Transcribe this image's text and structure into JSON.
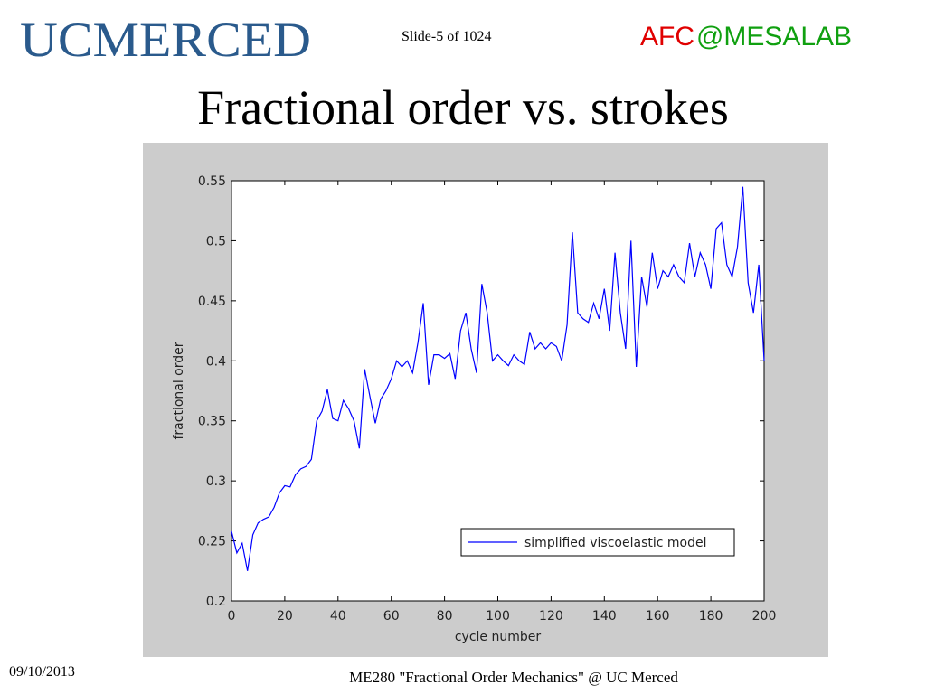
{
  "header": {
    "logo": "UCMERCED",
    "lab_left": "AFC",
    "lab_right": "@MESALAB",
    "slide_number": "Slide-5 of 1024",
    "title": "Fractional order vs. strokes"
  },
  "footer": {
    "date": "09/10/2013",
    "course": "ME280 \"Fractional Order Mechanics\" @ UC Merced"
  },
  "chart_data": {
    "type": "line",
    "xlabel": "cycle number",
    "ylabel": "fractional order",
    "x": [
      0,
      2,
      4,
      6,
      8,
      10,
      12,
      14,
      16,
      18,
      20,
      22,
      24,
      26,
      28,
      30,
      32,
      34,
      36,
      38,
      40,
      42,
      44,
      46,
      48,
      50,
      52,
      54,
      56,
      58,
      60,
      62,
      64,
      66,
      68,
      70,
      72,
      74,
      76,
      78,
      80,
      82,
      84,
      86,
      88,
      90,
      92,
      94,
      96,
      98,
      100,
      102,
      104,
      106,
      108,
      110,
      112,
      114,
      116,
      118,
      120,
      122,
      124,
      126,
      128,
      130,
      132,
      134,
      136,
      138,
      140,
      142,
      144,
      146,
      148,
      150,
      152,
      154,
      156,
      158,
      160,
      162,
      164,
      166,
      168,
      170,
      172,
      174,
      176,
      178,
      180,
      182,
      184,
      186,
      188,
      190,
      192,
      194,
      196,
      198,
      200
    ],
    "series": [
      {
        "name": "simplified viscoelastic model",
        "color": "#0000ff",
        "values": [
          0.258,
          0.24,
          0.248,
          0.225,
          0.255,
          0.265,
          0.268,
          0.27,
          0.278,
          0.29,
          0.296,
          0.295,
          0.305,
          0.31,
          0.312,
          0.318,
          0.35,
          0.358,
          0.376,
          0.352,
          0.35,
          0.367,
          0.36,
          0.35,
          0.327,
          0.393,
          0.37,
          0.348,
          0.368,
          0.375,
          0.385,
          0.4,
          0.395,
          0.4,
          0.39,
          0.415,
          0.448,
          0.38,
          0.405,
          0.405,
          0.402,
          0.406,
          0.385,
          0.425,
          0.44,
          0.41,
          0.39,
          0.464,
          0.44,
          0.4,
          0.405,
          0.4,
          0.396,
          0.405,
          0.4,
          0.397,
          0.424,
          0.41,
          0.415,
          0.41,
          0.415,
          0.412,
          0.4,
          0.43,
          0.507,
          0.44,
          0.435,
          0.432,
          0.448,
          0.435,
          0.46,
          0.425,
          0.49,
          0.44,
          0.41,
          0.5,
          0.395,
          0.47,
          0.445,
          0.49,
          0.46,
          0.475,
          0.47,
          0.48,
          0.47,
          0.465,
          0.498,
          0.47,
          0.49,
          0.48,
          0.46,
          0.51,
          0.515,
          0.48,
          0.47,
          0.495,
          0.545,
          0.465,
          0.44,
          0.48,
          0.4
        ]
      }
    ],
    "xlim": [
      0,
      200
    ],
    "xticks": [
      0,
      20,
      40,
      60,
      80,
      100,
      120,
      140,
      160,
      180,
      200
    ],
    "ylim": [
      0.2,
      0.55
    ],
    "yticks": [
      0.2,
      0.25,
      0.3,
      0.35,
      0.4,
      0.45,
      0.5,
      0.55
    ],
    "legend": "lower right"
  }
}
